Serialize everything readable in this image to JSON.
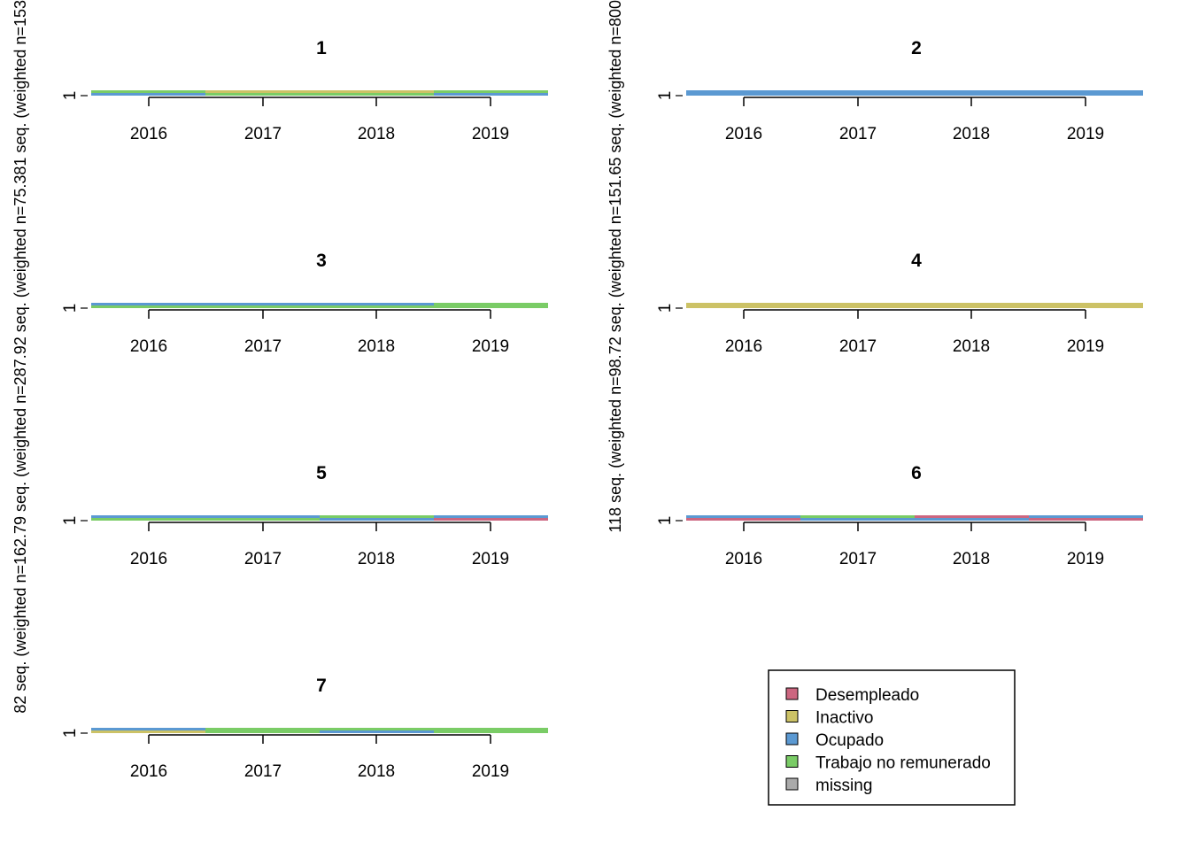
{
  "chart_data": {
    "type": "sequence-frequency-plot",
    "x_ticks": [
      "2016",
      "2017",
      "2018",
      "2019"
    ],
    "y_tick": "1",
    "panels": [
      {
        "title": "1",
        "segments": [
          [
            "Trabajo no remunerado",
            "Ocupado"
          ],
          [
            "Inactivo",
            "Trabajo no remunerado"
          ],
          [
            "Inactivo",
            "Trabajo no remunerado"
          ],
          [
            "Trabajo no remunerado",
            "Ocupado"
          ]
        ]
      },
      {
        "title": "2",
        "segments": [
          [
            "Ocupado"
          ],
          [
            "Ocupado"
          ],
          [
            "Ocupado"
          ],
          [
            "Ocupado"
          ]
        ]
      },
      {
        "title": "3",
        "segments": [
          [
            "Ocupado",
            "Trabajo no remunerado"
          ],
          [
            "Ocupado",
            "Trabajo no remunerado"
          ],
          [
            "Ocupado",
            "Trabajo no remunerado"
          ],
          [
            "Trabajo no remunerado"
          ]
        ]
      },
      {
        "title": "4",
        "segments": [
          [
            "Inactivo"
          ],
          [
            "Inactivo"
          ],
          [
            "Inactivo"
          ],
          [
            "Inactivo"
          ]
        ]
      },
      {
        "title": "5",
        "segments": [
          [
            "Ocupado",
            "Trabajo no remunerado"
          ],
          [
            "Ocupado",
            "Trabajo no remunerado"
          ],
          [
            "Trabajo no remunerado",
            "Ocupado"
          ],
          [
            "Ocupado",
            "Desempleado"
          ]
        ]
      },
      {
        "title": "6",
        "segments": [
          [
            "Ocupado",
            "Desempleado"
          ],
          [
            "Trabajo no remunerado",
            "Ocupado"
          ],
          [
            "Desempleado",
            "Ocupado"
          ],
          [
            "Ocupado",
            "Desempleado"
          ]
        ]
      },
      {
        "title": "7",
        "segments": [
          [
            "Ocupado",
            "Inactivo"
          ],
          [
            "Trabajo no remunerado"
          ],
          [
            "Trabajo no remunerado",
            "Ocupado"
          ],
          [
            "Trabajo no remunerado"
          ]
        ]
      }
    ],
    "legend": [
      {
        "label": "Desempleado",
        "color": "#CC6680"
      },
      {
        "label": "Inactivo",
        "color": "#CCC266"
      },
      {
        "label": "Ocupado",
        "color": "#5B99D2"
      },
      {
        "label": "Trabajo no remunerado",
        "color": "#7ACC66"
      },
      {
        "label": "missing",
        "color": "#AAAAAA"
      }
    ],
    "left_axis_label": "82 seq. (weighted n=162.79 seq. (weighted n=287.92 seq. (weighted n=75.381 seq. (weighted n=153",
    "mid_axis_label": "118 seq. (weighted n=98.72 seq. (weighted n=151.65 seq. (weighted n=800",
    "legend_position": "bottom-right"
  }
}
